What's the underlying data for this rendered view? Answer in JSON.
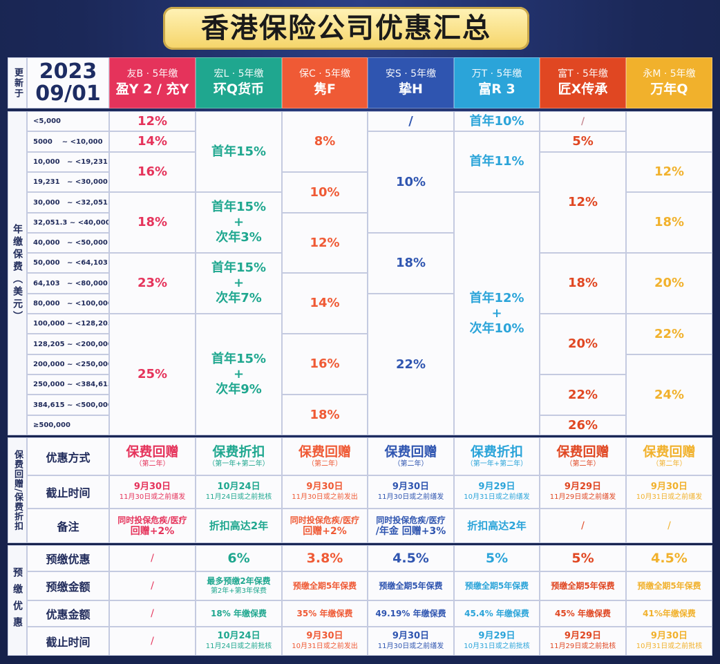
{
  "title": "香港保险公司优惠汇总",
  "update": {
    "label": "更新于",
    "year": "2023",
    "date": "09/01"
  },
  "colors": {
    "red": "#e5335b",
    "teal": "#1fa78f",
    "orange": "#ef5a35",
    "blue": "#2f55b0",
    "sky": "#2ba4d9",
    "redorange": "#e04722",
    "gold": "#f1b12c"
  },
  "companies": [
    {
      "sub": "友B · 5年缴",
      "name": "盈Y 2 / 充Y"
    },
    {
      "sub": "宏L · 5年缴",
      "name": "环Q货币"
    },
    {
      "sub": "保C · 5年缴",
      "name": "隽F"
    },
    {
      "sub": "安S · 5年缴",
      "name": "挚H"
    },
    {
      "sub": "万T · 5年缴",
      "name": "富R 3"
    },
    {
      "sub": "富T · 5年缴",
      "name": "匠X传承"
    },
    {
      "sub": "永M · 5年缴",
      "name": "万年Q"
    }
  ],
  "premium_label": "年缴保费（美元）",
  "bands": [
    "<5,000",
    "5000    ~ <10,000",
    "10,000   ~ <19,231",
    "19,231   ~ <30,000",
    "30,000   ~ <32,051.3",
    "32,051.3 ~ <40,000",
    "40,000   ~ <50,000",
    "50,000   ~ <64,103",
    "64,103   ~ <80,000",
    "80,000   ~ <100,000",
    "100,000 ~ <128,205",
    "128,205 ~ <200,000",
    "200,000 ~ <250,000",
    "250,000 ~ <384,615",
    "384,615 ~ <500,000",
    "≥500,000"
  ],
  "rates": {
    "c1": [
      "12%",
      "14%",
      "16%",
      "18%",
      "23%",
      "25%"
    ],
    "c2": [
      "首年15%",
      "首年15%",
      "+",
      "次年3%",
      "首年15%",
      "+",
      "次年7%",
      "首年15%",
      "+",
      "次年9%"
    ],
    "c3": [
      "8%",
      "10%",
      "12%",
      "14%",
      "16%",
      "18%"
    ],
    "c4": [
      "/",
      "10%",
      "18%",
      "22%"
    ],
    "c5": [
      "首年10%",
      "首年11%",
      "首年12%",
      "+",
      "次年10%"
    ],
    "c6": [
      "/",
      "5%",
      "12%",
      "18%",
      "20%",
      "22%",
      "26%"
    ],
    "c7": [
      "12%",
      "18%",
      "20%",
      "22%",
      "24%"
    ]
  },
  "section2": {
    "side": "保费回赠/保费折扣",
    "rows": [
      "优惠方式",
      "截止时间",
      "备注"
    ],
    "method": [
      {
        "main": "保费回赠",
        "note": "（第二年）"
      },
      {
        "main": "保费折扣",
        "note": "（第一年+第二年）"
      },
      {
        "main": "保费回赠",
        "note": "（第二年）"
      },
      {
        "main": "保费回赠",
        "note": "（第二年）"
      },
      {
        "main": "保费折扣",
        "note": "（第一年+第二年）"
      },
      {
        "main": "保费回赠",
        "note": "（第二年）"
      },
      {
        "main": "保费回赠",
        "note": "（第二年）"
      }
    ],
    "deadline": [
      {
        "date": "9月30日",
        "note": "11月30日或之前缮发"
      },
      {
        "date": "10月24日",
        "note": "11月24日或之前批核"
      },
      {
        "date": "9月30日",
        "note": "11月30日或之前发出"
      },
      {
        "date": "9月30日",
        "note": "11月30日或之前缮发"
      },
      {
        "date": "9月29日",
        "note": "10月31日或之前缮发"
      },
      {
        "date": "9月29日",
        "note": "11月29日或之前缮发"
      },
      {
        "date": "9月30日",
        "note": "10月31日或之前缮发"
      }
    ],
    "remarks": [
      {
        "l1": "同时投保危疾/医疗",
        "l2": "回赠+2%"
      },
      {
        "l1": "折扣高达2年",
        "l2": ""
      },
      {
        "l1": "同时投保危疾/医疗",
        "l2": "回赠+2%"
      },
      {
        "l1": "同时投保危疾/医疗",
        "l2": "/年金 回赠+3%"
      },
      {
        "l1": "折扣高达2年",
        "l2": ""
      },
      {
        "l1": "/",
        "l2": ""
      },
      {
        "l1": "/",
        "l2": ""
      }
    ]
  },
  "section3": {
    "side": "预缴优惠",
    "rows": [
      "预缴优惠",
      "预缴金额",
      "优惠金额",
      "截止时间"
    ],
    "rate": [
      "/",
      "6%",
      "3.8%",
      "4.5%",
      "5%",
      "5%",
      "4.5%"
    ],
    "amount": [
      {
        "l1": "/",
        "l2": ""
      },
      {
        "l1": "最多预缴2年保费",
        "l2": "第2年+第3年保费"
      },
      {
        "l1": "预缴全期5年保费",
        "l2": ""
      },
      {
        "l1": "预缴全期5年保费",
        "l2": ""
      },
      {
        "l1": "预缴全期5年保费",
        "l2": ""
      },
      {
        "l1": "预缴全期5年保费",
        "l2": ""
      },
      {
        "l1": "预缴全期5年保费",
        "l2": ""
      }
    ],
    "benefit": [
      "/",
      "18% 年缴保费",
      "35% 年缴保费",
      "49.19% 年缴保费",
      "45.4% 年缴保费",
      "45% 年缴保费",
      "41%年缴保费"
    ],
    "deadline": [
      {
        "date": "/",
        "note": ""
      },
      {
        "date": "10月24日",
        "note": "11月24日或之前批核"
      },
      {
        "date": "9月30日",
        "note": "10月31日或之前发出"
      },
      {
        "date": "9月30日",
        "note": "11月30日或之前缮发"
      },
      {
        "date": "9月29日",
        "note": "10月31日或之前批核"
      },
      {
        "date": "9月29日",
        "note": "11月29日或之前批核"
      },
      {
        "date": "9月30日",
        "note": "10月31日或之前批核"
      }
    ]
  }
}
